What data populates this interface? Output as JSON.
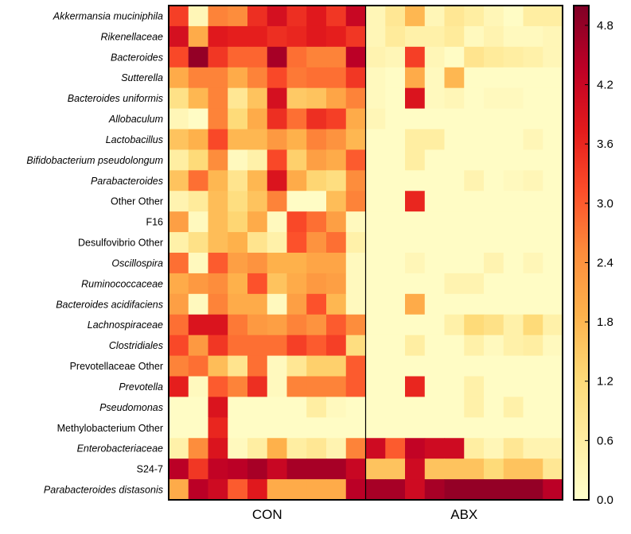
{
  "chart_data": {
    "type": "heatmap",
    "rows": [
      {
        "label": "Akkermansia muciniphila",
        "italic": true
      },
      {
        "label": "Rikenellaceae",
        "italic": true
      },
      {
        "label": "Bacteroides",
        "italic": true
      },
      {
        "label": "Sutterella",
        "italic": true
      },
      {
        "label": "Bacteroides uniformis",
        "italic": true
      },
      {
        "label": "Allobaculum",
        "italic": true
      },
      {
        "label": "Lactobacillus",
        "italic": true
      },
      {
        "label": "Bifidobacterium pseudolongum",
        "italic": true
      },
      {
        "label": "Parabacteroides",
        "italic": true
      },
      {
        "label": "Other Other",
        "italic": false
      },
      {
        "label": "F16",
        "italic": false
      },
      {
        "label": "Desulfovibrio Other",
        "italic": false
      },
      {
        "label": "Oscillospira",
        "italic": true
      },
      {
        "label": "Ruminococcaceae",
        "italic": true
      },
      {
        "label": "Bacteroides acidifaciens",
        "italic": true
      },
      {
        "label": "Lachnospiraceae",
        "italic": true
      },
      {
        "label": "Clostridiales",
        "italic": true
      },
      {
        "label": "Prevotellaceae Other",
        "italic": false
      },
      {
        "label": "Prevotella",
        "italic": true
      },
      {
        "label": "Pseudomonas",
        "italic": true
      },
      {
        "label": "Methylobacterium Other",
        "italic": false
      },
      {
        "label": "Enterobacteriaceae",
        "italic": true
      },
      {
        "label": "S24-7",
        "italic": false
      },
      {
        "label": "Parabacteroides distasonis",
        "italic": true
      }
    ],
    "groups": [
      {
        "label": "CON",
        "columns": 10
      },
      {
        "label": "ABX",
        "columns": 10
      }
    ],
    "values": [
      [
        3.3,
        0.3,
        2.6,
        2.5,
        3.5,
        4.0,
        3.5,
        3.8,
        3.4,
        4.2,
        0.3,
        0.8,
        1.8,
        0.3,
        0.8,
        0.6,
        0.3,
        0.1,
        0.6,
        0.6
      ],
      [
        4.0,
        2.0,
        3.8,
        3.7,
        3.7,
        3.5,
        3.6,
        3.8,
        3.7,
        3.4,
        0.3,
        0.7,
        0.5,
        0.5,
        0.7,
        0.2,
        0.4,
        0.2,
        0.2,
        0.3
      ],
      [
        3.2,
        4.8,
        3.4,
        2.9,
        2.9,
        4.6,
        2.8,
        2.6,
        2.6,
        4.4,
        0.4,
        0.3,
        3.3,
        0.3,
        0.1,
        0.9,
        0.7,
        0.6,
        0.5,
        0.3
      ],
      [
        2.0,
        2.6,
        2.6,
        2.0,
        2.6,
        3.2,
        2.7,
        2.8,
        2.8,
        3.4,
        0.2,
        0.1,
        2.0,
        0.2,
        1.8,
        0.1,
        0.1,
        0.1,
        0.1,
        0.1
      ],
      [
        1.0,
        1.8,
        2.6,
        0.8,
        1.6,
        4.0,
        1.5,
        1.6,
        2.1,
        2.6,
        0.2,
        0.1,
        3.9,
        0.2,
        0.3,
        0.1,
        0.2,
        0.2,
        0.1,
        0.1
      ],
      [
        0.3,
        0.1,
        2.6,
        1.2,
        2.0,
        3.5,
        2.8,
        3.5,
        3.3,
        2.0,
        0.3,
        0.1,
        0.1,
        0.1,
        0.1,
        0.1,
        0.1,
        0.1,
        0.1,
        0.1
      ],
      [
        1.6,
        1.9,
        3.2,
        1.8,
        1.8,
        2.3,
        1.9,
        2.6,
        2.4,
        1.8,
        0.1,
        0.1,
        0.6,
        0.6,
        0.1,
        0.1,
        0.1,
        0.1,
        0.3,
        0.1
      ],
      [
        0.6,
        1.2,
        2.5,
        0.2,
        0.5,
        3.2,
        1.4,
        2.2,
        2.0,
        3.0,
        0.1,
        0.1,
        0.6,
        0.1,
        0.1,
        0.1,
        0.1,
        0.1,
        0.1,
        0.1
      ],
      [
        1.6,
        2.8,
        1.8,
        0.9,
        1.8,
        3.9,
        2.0,
        1.3,
        1.1,
        2.5,
        0.1,
        0.1,
        0.1,
        0.1,
        0.1,
        0.4,
        0.1,
        0.2,
        0.3,
        0.1
      ],
      [
        0.4,
        0.7,
        1.7,
        1.1,
        1.6,
        2.6,
        0.1,
        0.1,
        1.7,
        2.6,
        0.1,
        0.1,
        3.6,
        0.1,
        0.1,
        0.1,
        0.1,
        0.1,
        0.1,
        0.1
      ],
      [
        2.2,
        0.2,
        1.7,
        1.3,
        2.0,
        0.2,
        3.2,
        2.8,
        2.2,
        0.2,
        0.1,
        0.1,
        0.1,
        0.1,
        0.1,
        0.1,
        0.1,
        0.1,
        0.1,
        0.1
      ],
      [
        0.5,
        1.0,
        1.7,
        1.9,
        0.9,
        0.5,
        3.1,
        2.4,
        2.8,
        0.5,
        0.1,
        0.1,
        0.1,
        0.1,
        0.1,
        0.1,
        0.1,
        0.1,
        0.1,
        0.1
      ],
      [
        2.8,
        0.2,
        3.0,
        2.2,
        2.4,
        1.9,
        1.9,
        2.1,
        2.1,
        0.2,
        0.1,
        0.1,
        0.3,
        0.1,
        0.1,
        0.1,
        0.4,
        0.1,
        0.3,
        0.1
      ],
      [
        2.0,
        2.3,
        2.5,
        1.9,
        3.1,
        1.6,
        2.0,
        2.3,
        2.2,
        0.2,
        0.1,
        0.1,
        0.1,
        0.1,
        0.4,
        0.4,
        0.1,
        0.1,
        0.1,
        0.1
      ],
      [
        2.2,
        0.2,
        2.6,
        2.0,
        2.0,
        0.2,
        2.2,
        3.1,
        1.8,
        0.2,
        0.1,
        0.1,
        2.0,
        0.1,
        0.1,
        0.1,
        0.1,
        0.1,
        0.1,
        0.1
      ],
      [
        2.8,
        3.9,
        3.9,
        2.7,
        2.3,
        2.2,
        2.6,
        2.4,
        3.0,
        2.5,
        0.1,
        0.1,
        0.1,
        0.1,
        0.5,
        1.2,
        1.0,
        0.5,
        1.2,
        0.5
      ],
      [
        3.2,
        2.3,
        3.4,
        2.8,
        2.8,
        2.8,
        3.3,
        3.0,
        3.3,
        1.1,
        0.1,
        0.1,
        0.6,
        0.1,
        0.1,
        0.5,
        0.2,
        0.5,
        0.6,
        0.2
      ],
      [
        2.6,
        2.8,
        1.7,
        0.9,
        2.8,
        0.2,
        0.8,
        1.4,
        1.4,
        3.0,
        0.1,
        0.1,
        0.1,
        0.1,
        0.1,
        0.1,
        0.1,
        0.1,
        0.1,
        0.1
      ],
      [
        3.7,
        0.2,
        3.0,
        2.6,
        3.5,
        0.2,
        2.6,
        2.6,
        2.6,
        3.0,
        0.1,
        0.1,
        3.6,
        0.1,
        0.1,
        0.5,
        0.1,
        0.1,
        0.1,
        0.1
      ],
      [
        0.1,
        0.1,
        3.9,
        0.1,
        0.1,
        0.1,
        0.1,
        0.6,
        0.2,
        0.1,
        0.1,
        0.1,
        0.1,
        0.1,
        0.1,
        0.5,
        0.1,
        0.5,
        0.1,
        0.1
      ],
      [
        0.1,
        0.1,
        3.6,
        0.1,
        0.1,
        0.1,
        0.1,
        0.1,
        0.1,
        0.1,
        0.1,
        0.1,
        0.1,
        0.1,
        0.1,
        0.1,
        0.1,
        0.1,
        0.1,
        0.1
      ],
      [
        0.5,
        2.5,
        3.9,
        0.2,
        0.6,
        1.9,
        0.6,
        0.8,
        0.4,
        2.6,
        4.1,
        3.0,
        4.3,
        4.1,
        4.1,
        0.6,
        0.3,
        0.8,
        0.4,
        0.4
      ],
      [
        4.4,
        3.4,
        4.3,
        4.4,
        4.6,
        4.2,
        4.6,
        4.6,
        4.6,
        4.2,
        1.6,
        1.6,
        4.1,
        1.6,
        1.6,
        1.6,
        1.2,
        1.6,
        1.6,
        0.8
      ],
      [
        2.0,
        4.4,
        4.1,
        3.0,
        3.8,
        2.0,
        2.0,
        2.0,
        2.0,
        4.4,
        4.6,
        4.6,
        4.1,
        4.6,
        4.8,
        4.8,
        4.8,
        4.8,
        4.8,
        4.4
      ]
    ],
    "colorbar": {
      "min": 0.0,
      "max": 5.0,
      "ticks": [
        "0.0",
        "0.6",
        "1.2",
        "1.8",
        "2.4",
        "3.0",
        "3.6",
        "4.2",
        "4.8"
      ],
      "colormap": "YlOrRd",
      "colors": [
        "#ffffcc",
        "#ffeda0",
        "#fed976",
        "#feb24c",
        "#fd8d3c",
        "#fc4e2a",
        "#e31a1c",
        "#bd0026",
        "#800026"
      ]
    }
  }
}
